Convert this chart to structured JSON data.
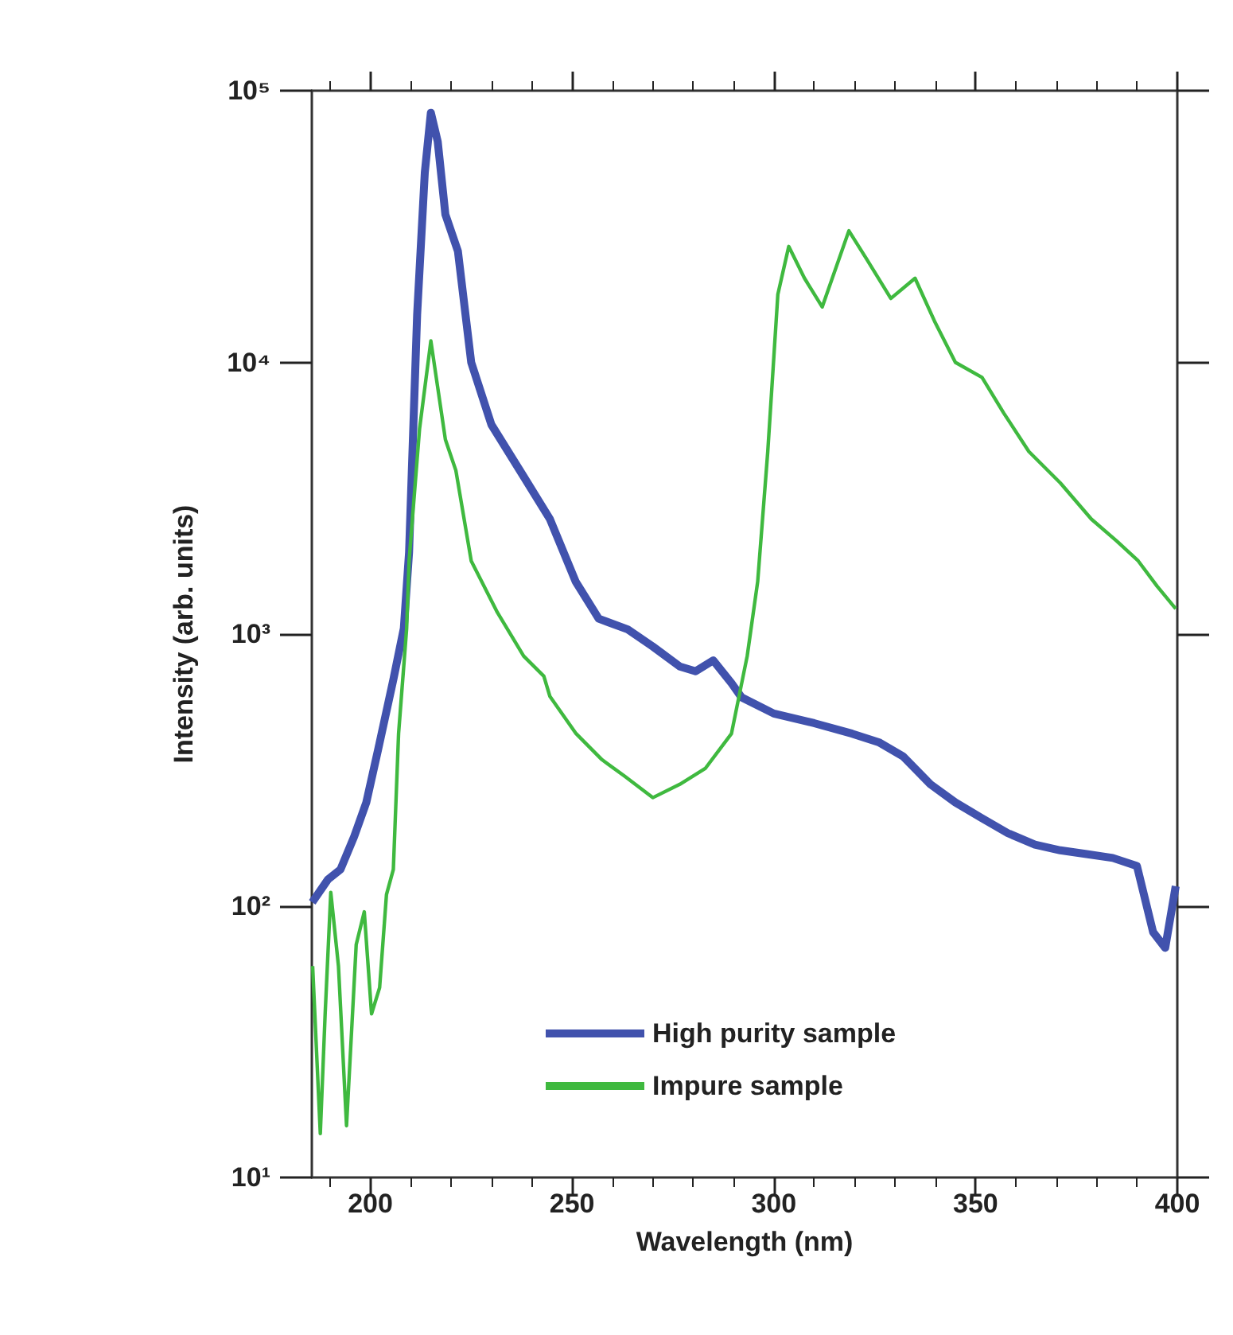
{
  "chart_data": {
    "type": "line",
    "xlabel": "Wavelength (nm)",
    "ylabel": "Intensity (arb. units)",
    "xlim": [
      185.5,
      400
    ],
    "xticks": [
      200,
      250,
      300,
      350,
      400
    ],
    "ylim": [
      10,
      100000
    ],
    "log": "y",
    "yticks": [
      {
        "value": 10,
        "label": "10¹"
      },
      {
        "value": 100,
        "label": "10²"
      },
      {
        "value": 1000,
        "label": "10³"
      },
      {
        "value": 10000,
        "label": "10⁴"
      },
      {
        "value": 100000,
        "label": "10⁵"
      }
    ],
    "legend": "bottom",
    "grid": false,
    "marker": "none",
    "series": [
      {
        "name": "High purity sample",
        "color": "#4152ad",
        "x": [
          185.6,
          189.5,
          192.6,
          196,
          199,
          202,
          205.7,
          208.3,
          209.6,
          211.6,
          213.5,
          215,
          216.7,
          218.6,
          221.7,
          225,
          230,
          238,
          244.5,
          250.9,
          256.6,
          263.8,
          270,
          276.7,
          280.6,
          285,
          289.5,
          292,
          300,
          310,
          319.4,
          326,
          332,
          338.8,
          345,
          351.6,
          358,
          364.7,
          371,
          377.5,
          384,
          390,
          394,
          397,
          399.6
        ],
        "values": [
          103,
          125,
          136,
          180,
          240,
          380,
          680,
          1050,
          2000,
          15000,
          50000,
          83000,
          65000,
          35000,
          25700,
          10000,
          5900,
          3800,
          2650,
          1560,
          1140,
          1040,
          900,
          760,
          730,
          800,
          660,
          585,
          510,
          470,
          430,
          400,
          355,
          280,
          240,
          210,
          185,
          168,
          160,
          155,
          150,
          140,
          80,
          70,
          118
        ]
      },
      {
        "name": "Impure sample",
        "color": "#3fb93f",
        "x": [
          185.7,
          187.6,
          188.8,
          190.2,
          192.1,
          194.1,
          196.5,
          198.5,
          200.3,
          202.3,
          204,
          205.7,
          207,
          209,
          209.6,
          212.2,
          215,
          218.6,
          221.2,
          225,
          231.5,
          238,
          243,
          244.5,
          251,
          257.4,
          263,
          270,
          276.7,
          283,
          289.5,
          293.4,
          296,
          298.5,
          301,
          303.7,
          307.6,
          312,
          318.6,
          323,
          329,
          335,
          340,
          345,
          351.6,
          357,
          363.2,
          371,
          378.7,
          385,
          390.3,
          395,
          399.6
        ],
        "values": [
          60,
          14.5,
          40,
          112,
          60,
          15.5,
          72,
          95,
          40,
          50,
          110,
          136,
          430,
          1050,
          1860,
          5700,
          12000,
          5200,
          4000,
          1860,
          1200,
          830,
          700,
          590,
          430,
          345,
          300,
          250,
          280,
          320,
          430,
          830,
          1560,
          4700,
          17800,
          26700,
          20400,
          16000,
          30500,
          24000,
          17200,
          20400,
          14000,
          10000,
          8800,
          6500,
          4700,
          3600,
          2650,
          2200,
          1860,
          1500,
          1240
        ]
      }
    ]
  }
}
